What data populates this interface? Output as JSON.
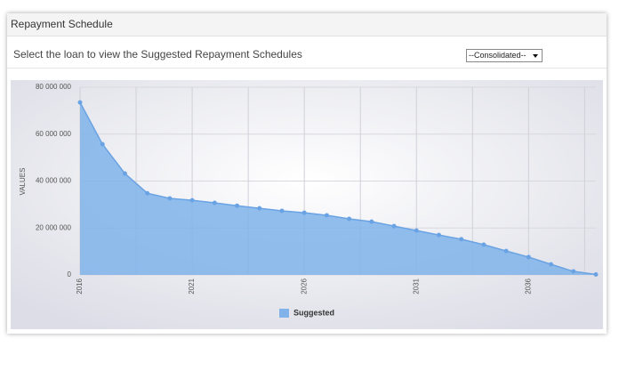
{
  "header": {
    "title": "Repayment Schedule"
  },
  "filter": {
    "prompt": "Select the loan to view the Suggested Repayment Schedules",
    "selected": "--Consolidated--"
  },
  "chart_data": {
    "type": "area",
    "y_label": "VALUES",
    "x": [
      2016,
      2017,
      2018,
      2019,
      2020,
      2021,
      2022,
      2023,
      2024,
      2025,
      2026,
      2027,
      2028,
      2029,
      2030,
      2031,
      2032,
      2033,
      2034,
      2035,
      2036,
      2037,
      2038,
      2039
    ],
    "series": [
      {
        "name": "Suggested",
        "color": "#7fb3ea",
        "values": [
          73500000,
          55700000,
          43200000,
          34800000,
          32600000,
          31800000,
          30700000,
          29500000,
          28400000,
          27300000,
          26500000,
          25400000,
          23900000,
          22700000,
          20800000,
          18900000,
          17000000,
          15200000,
          12900000,
          10200000,
          7600000,
          4500000,
          1500000,
          200000
        ]
      }
    ],
    "xlim": [
      2016,
      2039
    ],
    "xticks": [
      2016,
      2021,
      2026,
      2031,
      2036
    ],
    "x_minor_grid": [
      2018.5,
      2023.5,
      2028.5,
      2033.5,
      2038.5
    ],
    "ylim": [
      0,
      80000000
    ],
    "yticks": [
      {
        "value": 0,
        "label": "0"
      },
      {
        "value": 20000000,
        "label": "20 000 000"
      },
      {
        "value": 40000000,
        "label": "40 000 000"
      },
      {
        "value": 60000000,
        "label": "60 000 000"
      },
      {
        "value": 80000000,
        "label": "80 000 000"
      }
    ],
    "grid": true,
    "legend": "bottom"
  }
}
